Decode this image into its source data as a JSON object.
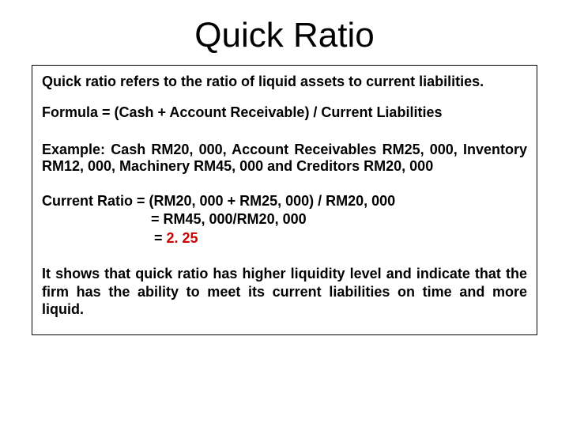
{
  "title": "Quick Ratio",
  "definition": "Quick ratio refers to the ratio of liquid assets to current liabilities.",
  "formula": "Formula = (Cash + Account Receivable) / Current Liabilities",
  "example": "Example: Cash RM20, 000, Account Receivables RM25, 000, Inventory RM12, 000, Machinery RM45, 000 and Creditors RM20, 000",
  "calc_line1": "Current Ratio = (RM20, 000 + RM25, 000) / RM20, 000",
  "calc_line2": "= RM45, 000/RM20, 000",
  "calc_line3_prefix": "= ",
  "result_value": "2. 25",
  "conclusion": "It shows that quick ratio has higher liquidity level and indicate that the firm has the ability to meet its current liabilities on time and more liquid.",
  "colors": {
    "background": "#ffffff",
    "text": "#000000",
    "result": "#cc0000",
    "border": "#000000"
  },
  "fonts": {
    "title_size": 44,
    "body_size": 18,
    "body_weight": "bold"
  }
}
